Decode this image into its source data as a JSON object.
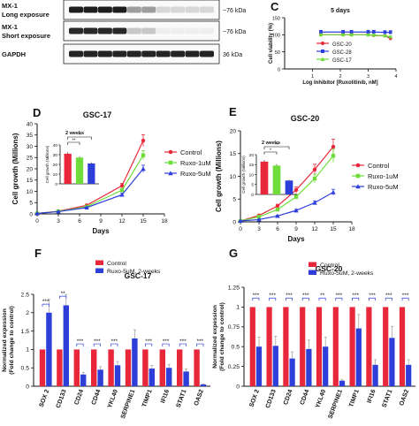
{
  "colors": {
    "red": "#e8283a",
    "green": "#6fdc3c",
    "blue": "#2d3fd8",
    "gray": "#9a9a9a",
    "axis": "#111111"
  },
  "blot": {
    "rows": [
      {
        "label": "MX-1",
        "sublabel": "Long exposure",
        "kda": "~76 kDa"
      },
      {
        "label": "MX-1",
        "sublabel": "Short exposure",
        "kda": "~76 kDa"
      },
      {
        "label": "GAPDH",
        "sublabel": "",
        "kda": "36 kDa"
      }
    ]
  },
  "chart_data": [
    {
      "id": "C",
      "panel_letter": "C",
      "type": "line",
      "title": "5 days",
      "xlabel": "Log Inhibitor [Ruxolitinib, nM]",
      "ylabel": "Cell viability (%)",
      "xlim": [
        0,
        4
      ],
      "ylim": [
        0,
        150
      ],
      "xticks": [
        1,
        2,
        3,
        4
      ],
      "yticks": [
        0,
        50,
        100,
        150
      ],
      "legend_position": "center-right",
      "series": [
        {
          "name": "GSC-20",
          "color_key": "red",
          "x": [
            1.3,
            2.1,
            2.4,
            3.0,
            3.2,
            3.6,
            3.8
          ],
          "y": [
            100,
            100,
            100,
            100,
            98,
            97,
            89
          ]
        },
        {
          "name": "GSC-28",
          "color_key": "blue",
          "x": [
            1.3,
            2.1,
            2.4,
            3.0,
            3.2,
            3.6,
            3.8
          ],
          "y": [
            108,
            108,
            108,
            108,
            108,
            107,
            107
          ]
        },
        {
          "name": "GSC-17",
          "color_key": "green",
          "x": [
            1.3,
            2.1,
            2.4,
            3.0,
            3.2,
            3.6,
            3.8
          ],
          "y": [
            100,
            100,
            100,
            100,
            99,
            97,
            94
          ]
        }
      ]
    },
    {
      "id": "D",
      "panel_letter": "D",
      "type": "line",
      "title": "GSC-17",
      "xlabel": "Days",
      "ylabel": "Cell growth (Millions)",
      "xlim": [
        0,
        18
      ],
      "ylim": [
        0,
        40
      ],
      "xticks": [
        0,
        3,
        6,
        9,
        12,
        15,
        18
      ],
      "yticks": [
        0,
        5,
        10,
        15,
        20,
        25,
        30,
        35,
        40
      ],
      "legend_position": "right",
      "series": [
        {
          "name": "Control",
          "color_key": "red",
          "x": [
            0,
            3,
            7,
            12,
            15
          ],
          "y": [
            0.2,
            1.2,
            3.8,
            12.5,
            32.5
          ]
        },
        {
          "name": "Ruxo-1uM",
          "color_key": "green",
          "x": [
            0,
            3,
            7,
            12,
            15
          ],
          "y": [
            0.2,
            1.1,
            3.2,
            10.5,
            26
          ]
        },
        {
          "name": "Ruxo-5uM",
          "color_key": "blue",
          "x": [
            0,
            3,
            7,
            12,
            15
          ],
          "y": [
            0.2,
            1.0,
            2.8,
            8.5,
            20
          ]
        }
      ],
      "inset": {
        "type": "bar",
        "title": "2 weeks",
        "ylabel": "Cell growth (Millions)",
        "ylim": [
          0,
          40
        ],
        "yticks": [
          0,
          10,
          20,
          30,
          40
        ],
        "values": [
          31,
          27,
          21
        ],
        "color_keys": [
          "red",
          "green",
          "blue"
        ],
        "annotations": [
          "**",
          "*"
        ]
      }
    },
    {
      "id": "E",
      "panel_letter": "E",
      "type": "line",
      "title": "GSC-20",
      "xlabel": "Days",
      "ylabel": "Cell growth (Millions)",
      "xlim": [
        0,
        18
      ],
      "ylim": [
        0,
        20
      ],
      "xticks": [
        0,
        3,
        6,
        9,
        12,
        15,
        18
      ],
      "yticks": [
        0,
        5,
        10,
        15,
        20
      ],
      "legend_position": "right",
      "series": [
        {
          "name": "Control",
          "color_key": "red",
          "x": [
            0,
            3,
            6,
            9,
            12,
            15
          ],
          "y": [
            0.2,
            1.4,
            3.5,
            7.0,
            11.5,
            16.5
          ]
        },
        {
          "name": "Ruxo-1uM",
          "color_key": "green",
          "x": [
            0,
            3,
            6,
            9,
            12,
            15
          ],
          "y": [
            0.2,
            1.1,
            2.7,
            5.5,
            9.5,
            14.5
          ]
        },
        {
          "name": "Ruxo-5uM",
          "color_key": "blue",
          "x": [
            0,
            3,
            6,
            9,
            12,
            15
          ],
          "y": [
            0.2,
            0.5,
            1.3,
            2.5,
            4.2,
            6.5
          ]
        }
      ],
      "inset": {
        "type": "bar",
        "title": "2 weeks",
        "ylabel": "Cell growth (Millions)",
        "ylim": [
          0,
          20
        ],
        "yticks": [
          0,
          5,
          10,
          15,
          20
        ],
        "values": [
          16.5,
          14.5,
          7
        ],
        "color_keys": [
          "red",
          "green",
          "blue"
        ],
        "annotations": [
          "*",
          "**"
        ]
      }
    },
    {
      "id": "F",
      "panel_letter": "F",
      "type": "bar",
      "title": "GSC-17",
      "ylabel": "Normalized expession (Fold change to control)",
      "ylim": [
        0,
        2.5
      ],
      "yticks": [
        0,
        0.5,
        1.0,
        1.5,
        2.0,
        2.5
      ],
      "ytick_labels": [
        "0",
        "0.5",
        "1",
        "1.5",
        "2",
        "2.5"
      ],
      "legend_position": "top-center",
      "categories": [
        "SOX 2",
        "CD133",
        "CD24",
        "CD44",
        "YKL40",
        "SERPINE1",
        "TIMP1",
        "IFI16",
        "STAT1",
        "OAS2"
      ],
      "series": [
        {
          "name": "Control",
          "color_key": "red",
          "values": [
            1,
            1,
            1,
            1,
            1,
            1,
            1,
            1,
            1,
            1
          ]
        },
        {
          "name": "Ruxo-5uM, 2-weeks",
          "color_key": "blue",
          "values": [
            2.0,
            2.2,
            0.32,
            0.45,
            0.57,
            1.3,
            0.48,
            0.5,
            0.4,
            0.05
          ]
        }
      ],
      "significance": [
        "***",
        "**",
        "***",
        "***",
        "***",
        "",
        "***",
        "***",
        "***",
        "***"
      ]
    },
    {
      "id": "G",
      "panel_letter": "G",
      "type": "bar",
      "title": "GSC-20",
      "ylabel": "Normalized expession (Fold change to control)",
      "ylim": [
        0,
        1.25
      ],
      "yticks": [
        0,
        0.25,
        0.5,
        0.75,
        1.0,
        1.25
      ],
      "ytick_labels": [
        "0",
        "0.25",
        "0.5",
        "0.75",
        "1",
        "1.25"
      ],
      "legend_position": "top-center",
      "categories": [
        "SOX 2",
        "CD133",
        "CD24",
        "CD44",
        "YKL40",
        "SERPINE1",
        "TIMP1",
        "IFI16",
        "STAT1",
        "OAS2"
      ],
      "series": [
        {
          "name": "Control",
          "color_key": "red",
          "values": [
            1,
            1,
            1,
            1,
            1,
            1,
            1,
            1,
            1,
            1
          ]
        },
        {
          "name": "Ruxo-5uM, 2-weeks",
          "color_key": "blue",
          "values": [
            0.5,
            0.51,
            0.35,
            0.47,
            0.5,
            0.07,
            0.73,
            0.27,
            0.61,
            0.27
          ]
        }
      ],
      "significance": [
        "***",
        "***",
        "***",
        "***",
        "**",
        "***",
        "***",
        "***",
        "***",
        "***"
      ]
    }
  ]
}
